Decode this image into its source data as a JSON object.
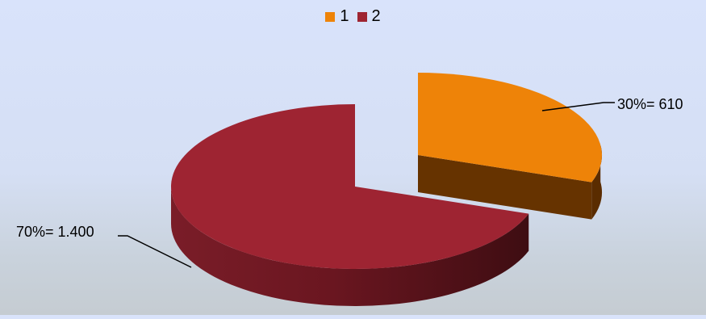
{
  "chart_data": {
    "type": "pie",
    "style": "3d-exploded",
    "legend_position": "top",
    "slices": [
      {
        "name": "1",
        "value": 610,
        "percent": 30,
        "label": "30%= 610",
        "color": "#ee8308",
        "side_color": "#663300"
      },
      {
        "name": "2",
        "value": 1400,
        "percent": 70,
        "label": "70%= 1.400",
        "color": "#9e2432",
        "side_color": "#6e1a22"
      }
    ]
  }
}
